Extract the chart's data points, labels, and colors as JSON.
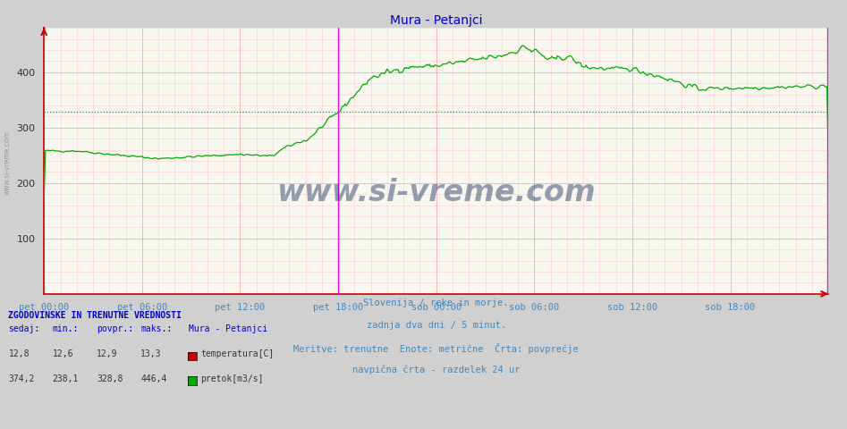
{
  "title": "Mura - Petanjci",
  "title_color": "#0000cc",
  "bg_color": "#d0d0d0",
  "plot_bg_color": "#f8f8f0",
  "grid_color_major": "#ff9999",
  "grid_color_minor": "#ffcccc",
  "line_color": "#00aa00",
  "avg_line_color": "#00aa00",
  "avg_line_value": 328.8,
  "tick_label_color": "#4488bb",
  "tick_labels": [
    "pet 00:00",
    "pet 06:00",
    "pet 12:00",
    "pet 18:00",
    "sob 00:00",
    "sob 06:00",
    "sob 12:00",
    "sob 18:00"
  ],
  "tick_positions": [
    0,
    72,
    144,
    216,
    288,
    360,
    432,
    504
  ],
  "total_points": 577,
  "ymin": 0,
  "ymax": 480,
  "yticks": [
    100,
    200,
    300,
    400
  ],
  "vline_magenta": [
    216,
    575
  ],
  "vline_color": "#ff00ff",
  "watermark_text": "www.si-vreme.com",
  "watermark_color": "#1a3060",
  "watermark_alpha": 0.45,
  "footer_lines": [
    "Slovenija / reke in morje.",
    "zadnja dva dni / 5 minut.",
    "Meritve: trenutne  Enote: metrične  Črta: povprečje",
    "navpična črta - razdelek 24 ur"
  ],
  "footer_color": "#4488bb",
  "legend_title": "ZGODOVINSKE IN TRENUTNE VREDNOSTI",
  "legend_title_color": "#0000cc",
  "legend_headers": [
    "sedaj:",
    "min.:",
    "povpr.:",
    "maks.:"
  ],
  "legend_header_color": "#0000cc",
  "row1": {
    "values": [
      "12,8",
      "12,6",
      "12,9",
      "13,3"
    ],
    "label": "temperatura[C]",
    "color": "#cc0000"
  },
  "row2": {
    "values": [
      "374,2",
      "238,1",
      "328,8",
      "446,4"
    ],
    "label": "pretok[m3/s]",
    "color": "#00aa00"
  },
  "left_label": "www.si-vreme.com",
  "left_label_color": "#999999",
  "spine_color": "#cc0000",
  "axis_arrow_color": "#cc0000"
}
